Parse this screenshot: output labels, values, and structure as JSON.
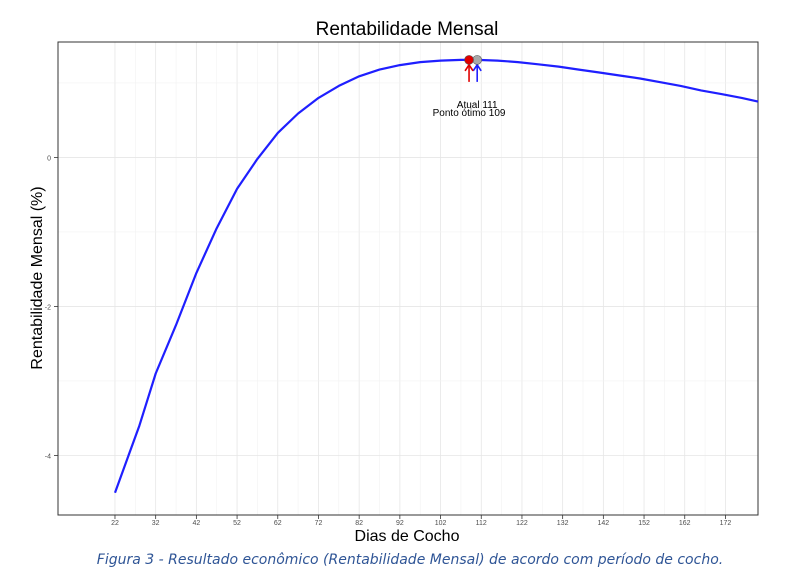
{
  "chart_data": {
    "type": "line",
    "title": "Rentabilidade Mensal",
    "xlabel": "Dias de Cocho",
    "ylabel": "Rentabilidade Mensal (%)",
    "xlim": [
      8,
      180
    ],
    "ylim": [
      -4.8,
      1.55
    ],
    "x_ticks": [
      22,
      32,
      42,
      52,
      62,
      72,
      82,
      92,
      102,
      112,
      122,
      132,
      142,
      152,
      162,
      172
    ],
    "y_ticks": [
      0,
      -2,
      -4
    ],
    "grid": true,
    "series": [
      {
        "color": "#1f1fff",
        "x": [
          22,
          25,
          28,
          32,
          37,
          42,
          47,
          52,
          57,
          62,
          67,
          72,
          77,
          82,
          87,
          92,
          97,
          102,
          107,
          111,
          116,
          121,
          126,
          131,
          136,
          141,
          146,
          151,
          156,
          161,
          166,
          171,
          176,
          180
        ],
        "y": [
          -4.5,
          -4.05,
          -3.6,
          -2.9,
          -2.25,
          -1.55,
          -0.95,
          -0.42,
          -0.02,
          0.33,
          0.59,
          0.8,
          0.96,
          1.09,
          1.18,
          1.24,
          1.28,
          1.3,
          1.31,
          1.31,
          1.3,
          1.28,
          1.25,
          1.22,
          1.18,
          1.14,
          1.1,
          1.06,
          1.01,
          0.96,
          0.9,
          0.85,
          0.8,
          0.75
        ]
      }
    ],
    "annotations": [
      {
        "label": "Atual 111",
        "x": 111,
        "y": 1.31,
        "marker_color": "#a9a9a9",
        "arrow_color": "#1f1fff"
      },
      {
        "label": "Ponto ótimo 109",
        "x": 109,
        "y": 1.31,
        "marker_color": "#e00000",
        "arrow_color": "#e00000"
      }
    ]
  },
  "caption": "Figura 3 - Resultado econômico (Rentabilidade Mensal) de acordo com período de cocho."
}
